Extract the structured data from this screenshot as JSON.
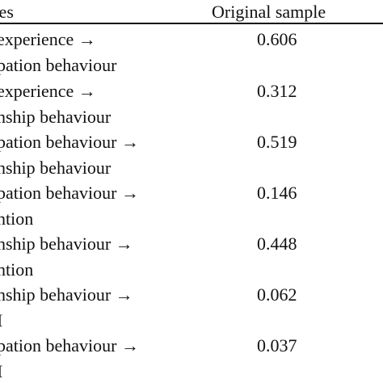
{
  "header": {
    "hypotheses": "ses",
    "original_sample": "Original sample"
  },
  "rows": [
    {
      "lines": [
        "experience →",
        "pation behaviour"
      ],
      "value": "0.606"
    },
    {
      "lines": [
        "experience →",
        "nship behaviour"
      ],
      "value": "0.312"
    },
    {
      "lines": [
        "pation behaviour →",
        "nship behaviour"
      ],
      "value": "0.519"
    },
    {
      "lines": [
        "pation behaviour →",
        "ntion"
      ],
      "value": "0.146"
    },
    {
      "lines": [
        "nship behaviour →",
        "ntion"
      ],
      "value": "0.448"
    },
    {
      "lines": [
        "nship behaviour →",
        "I"
      ],
      "value": "0.062"
    },
    {
      "lines": [
        "pation behaviour →",
        "I"
      ],
      "value": "0.037"
    }
  ]
}
